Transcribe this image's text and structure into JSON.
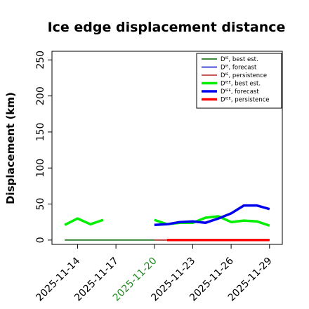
{
  "chart_data": {
    "type": "line",
    "title": "Ice edge displacement distance",
    "xlabel": "",
    "ylabel": "Displacement (km)",
    "x_start": "2025-11-12",
    "x_end": "2025-11-30",
    "ylim": [
      -6,
      262
    ],
    "yticks": [
      0,
      50,
      100,
      150,
      200,
      250
    ],
    "x_ticks": [
      {
        "date": "2025-11-14",
        "label": "2025-11-14",
        "color": "#000000"
      },
      {
        "date": "2025-11-17",
        "label": "2025-11-17",
        "color": "#000000"
      },
      {
        "date": "2025-11-20",
        "label": "2025-11-20",
        "color": "#228b22"
      },
      {
        "date": "2025-11-23",
        "label": "2025-11-23",
        "color": "#000000"
      },
      {
        "date": "2025-11-26",
        "label": "2025-11-26",
        "color": "#000000"
      },
      {
        "date": "2025-11-29",
        "label": "2025-11-29",
        "color": "#000000"
      }
    ],
    "grid": false,
    "legend_position": "top-right",
    "series": [
      {
        "name": "Dᴵᴱ, best est.",
        "color": "#006400",
        "width": 1.6,
        "points": [
          [
            "2025-11-13",
            0
          ],
          [
            "2025-11-29",
            0
          ]
        ]
      },
      {
        "name": "Dᴵᴱ, forecast",
        "color": "#0000cd",
        "width": 1.6,
        "points": []
      },
      {
        "name": "Dᴵᴱ, persistence",
        "color": "#b22222",
        "width": 1.6,
        "points": [
          [
            "2025-11-20",
            0
          ],
          [
            "2025-11-29",
            0
          ]
        ]
      },
      {
        "name": "Dᴵᴱᴱ, best est.",
        "color": "#00ee00",
        "width": 3.5,
        "points": [
          [
            "2025-11-13",
            21
          ],
          [
            "2025-11-14",
            30
          ],
          [
            "2025-11-15",
            22
          ],
          [
            "2025-11-16",
            28
          ],
          null,
          [
            "2025-11-20",
            28
          ],
          [
            "2025-11-21",
            22
          ],
          [
            "2025-11-22",
            24
          ],
          [
            "2025-11-23",
            24
          ],
          [
            "2025-11-24",
            31
          ],
          [
            "2025-11-25",
            33
          ],
          [
            "2025-11-26",
            25
          ],
          [
            "2025-11-27",
            27
          ],
          [
            "2025-11-28",
            26
          ],
          [
            "2025-11-29",
            20
          ]
        ]
      },
      {
        "name": "Dᴵᴱᴱ, forecast",
        "color": "#0000ee",
        "width": 3.5,
        "points": [
          [
            "2025-11-20",
            21
          ],
          [
            "2025-11-21",
            22
          ],
          [
            "2025-11-22",
            25
          ],
          [
            "2025-11-23",
            26
          ],
          [
            "2025-11-24",
            24
          ],
          [
            "2025-11-25",
            30
          ],
          [
            "2025-11-26",
            37
          ],
          [
            "2025-11-27",
            48
          ],
          [
            "2025-11-28",
            48
          ],
          [
            "2025-11-29",
            43
          ]
        ]
      },
      {
        "name": "Dᴵᴱᴱ, persistence",
        "color": "#ff0000",
        "width": 3.5,
        "points": [
          [
            "2025-11-21",
            0
          ],
          [
            "2025-11-29",
            0
          ]
        ]
      }
    ]
  }
}
